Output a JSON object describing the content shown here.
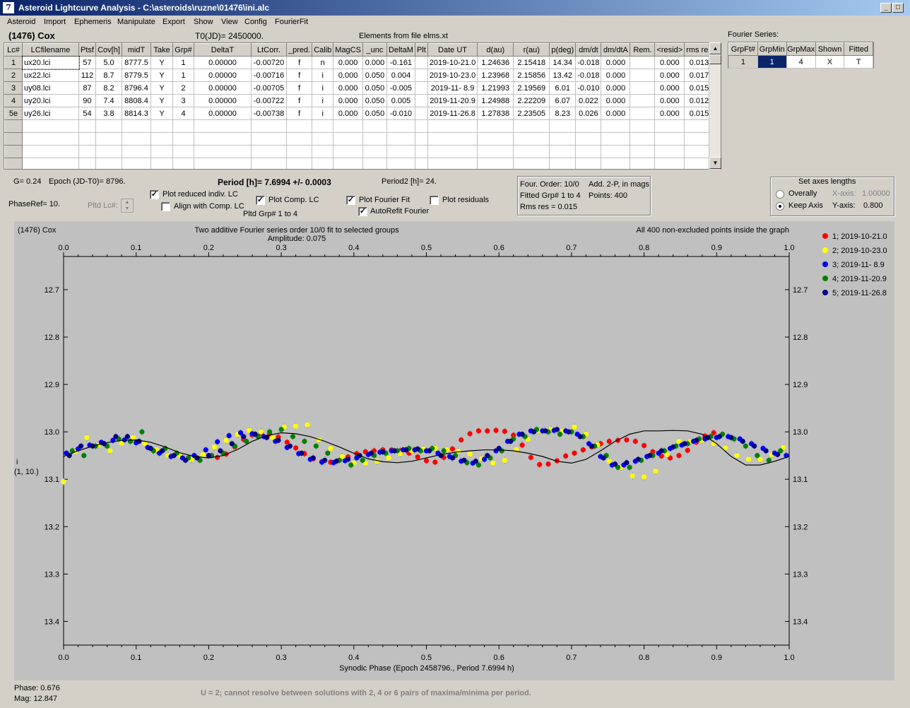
{
  "window": {
    "title": "Asteroid Lightcurve Analysis - C:\\asteroids\\ruzne\\01476\\ini.alc"
  },
  "menu": [
    "Asteroid",
    "Import",
    "Ephemeris",
    "Manipulate",
    "Export",
    "Show",
    "View",
    "Config",
    "FourierFit"
  ],
  "header": {
    "asteroid": "(1476) Cox",
    "t0": "T0(JD)= 2450000.",
    "elements": "Elements from file elms.xt",
    "fourier_series_label": "Fourier Series:"
  },
  "lc_table": {
    "columns": [
      "Lc#",
      "LCfilename",
      "Ptsf",
      "Cov[h]",
      "midT",
      "Take",
      "Grp#",
      "DeltaT",
      "LtCorr.",
      "_pred.",
      "Calib",
      "MagCS",
      "_unc",
      "DeltaM",
      "Plt",
      "Date UT",
      "d(au)",
      "r(au)",
      "p(deg)",
      "dm/dt",
      "dm/dtA",
      "Rem.",
      "<resid>",
      "rms res"
    ],
    "rows": [
      [
        "1",
        "ux20.lci",
        "57",
        "5.0",
        "8777.5",
        "Y",
        "1",
        "0.00000",
        "-0.00720",
        "f",
        "n",
        "0.000",
        "0.000",
        "-0.161",
        "",
        "2019-10-21.0",
        "1.24636",
        "2.15418",
        "14.34",
        "-0.018",
        "0.000",
        "",
        "0.000",
        "0.013"
      ],
      [
        "2",
        "ux22.lci",
        "112",
        "8.7",
        "8779.5",
        "Y",
        "1",
        "0.00000",
        "-0.00716",
        "f",
        "i",
        "0.000",
        "0.050",
        "0.004",
        "",
        "2019-10-23.0",
        "1.23968",
        "2.15856",
        "13.42",
        "-0.018",
        "0.000",
        "",
        "0.000",
        "0.017"
      ],
      [
        "3",
        "uy08.lci",
        "87",
        "8.2",
        "8796.4",
        "Y",
        "2",
        "0.00000",
        "-0.00705",
        "f",
        "i",
        "0.000",
        "0.050",
        "-0.005",
        "",
        "2019-11- 8.9",
        "1.21993",
        "2.19569",
        "6.01",
        "-0.010",
        "0.000",
        "",
        "0.000",
        "0.015"
      ],
      [
        "4",
        "uy20.lci",
        "90",
        "7.4",
        "8808.4",
        "Y",
        "3",
        "0.00000",
        "-0.00722",
        "f",
        "i",
        "0.000",
        "0.050",
        "0.005",
        "",
        "2019-11-20.9",
        "1.24988",
        "2.22209",
        "6.07",
        "0.022",
        "0.000",
        "",
        "0.000",
        "0.012"
      ],
      [
        "5e",
        "uy26.lci",
        "54",
        "3.8",
        "8814.3",
        "Y",
        "4",
        "0.00000",
        "-0.00738",
        "f",
        "i",
        "0.000",
        "0.050",
        "-0.010",
        "",
        "2019-11-26.8",
        "1.27838",
        "2.23505",
        "8.23",
        "0.026",
        "0.000",
        "",
        "0.000",
        "0.015"
      ]
    ],
    "empty_rows": 4
  },
  "fourier_table": {
    "columns": [
      "GrpFt#",
      "GrpMin",
      "GrpMax",
      "Shown",
      "Fitted"
    ],
    "row": [
      "1",
      "1",
      "4",
      "X",
      "T"
    ]
  },
  "params": {
    "g": "G= 0.24",
    "epoch": "Epoch (JD-T0)= 8796.",
    "period": "Period [h]= 7.6994 +/- 0.0003",
    "period2": "Period2 [h]= 24.",
    "phaseref": "PhaseRef= 10.",
    "pltd_lc": "Pltd Lc#:",
    "pltd_grp": "Pltd Grp#  1   to   4"
  },
  "checkboxes": {
    "plot_reduced": {
      "label": "Plot reduced indiv. LC",
      "checked": true
    },
    "align": {
      "label": "Align with Comp. LC",
      "checked": false
    },
    "plot_comp": {
      "label": "Plot Comp. LC",
      "checked": true
    },
    "plot_fourier": {
      "label": "Plot Fourier Fit",
      "checked": true
    },
    "autorefit": {
      "label": "AutoRefit Fourier",
      "checked": true
    },
    "plot_residuals": {
      "label": "Plot residuals",
      "checked": false
    }
  },
  "fourier_info": {
    "order": "Four. Order: 10/0",
    "add": "Add. 2-P, in mags",
    "fitted": "Fitted Grp# 1 to 4",
    "points": "Points: 400",
    "rms": "Rms res     = 0.015"
  },
  "axes_box": {
    "title": "Set axes lengths",
    "overally": "Overally",
    "keep": "Keep Axis",
    "xaxis_label": "X-axis:",
    "xaxis_value": "1.00000",
    "yaxis_label": "Y-axis:",
    "yaxis_value": "0.800"
  },
  "chart_data": {
    "type": "scatter",
    "name": "(1476) Cox",
    "title": "Two additive Fourier series order 10/0 fit to selected groups",
    "subtitle": "Amplitude: 0.075",
    "note": "All 400 non-excluded points inside the graph",
    "xlabel": "Synodic Phase (Epoch 2458796., Period 7.6994 h)",
    "ylabel": "i",
    "ylabel2": "(1, 10.)",
    "xlim": [
      0.0,
      1.0
    ],
    "ylim": [
      13.45,
      12.63
    ],
    "x_ticks": [
      "0.0",
      "0.1",
      "0.2",
      "0.3",
      "0.4",
      "0.5",
      "0.6",
      "0.7",
      "0.8",
      "0.9",
      "1.0"
    ],
    "y_ticks": [
      "12.7",
      "12.8",
      "12.9",
      "13.0",
      "13.1",
      "13.2",
      "13.3",
      "13.4"
    ],
    "grid": false,
    "legend_position": "top-right",
    "fit_curve": {
      "x": [
        0.0,
        0.02,
        0.04,
        0.06,
        0.08,
        0.1,
        0.12,
        0.14,
        0.16,
        0.18,
        0.2,
        0.22,
        0.24,
        0.26,
        0.28,
        0.3,
        0.32,
        0.34,
        0.36,
        0.38,
        0.4,
        0.42,
        0.44,
        0.46,
        0.48,
        0.5,
        0.52,
        0.54,
        0.56,
        0.58,
        0.6,
        0.62,
        0.64,
        0.66,
        0.68,
        0.7,
        0.72,
        0.74,
        0.76,
        0.78,
        0.8,
        0.82,
        0.84,
        0.86,
        0.88,
        0.9,
        0.92,
        0.94,
        0.96,
        0.98,
        1.0
      ],
      "y": [
        13.052,
        13.04,
        13.03,
        13.023,
        13.018,
        13.017,
        13.022,
        13.032,
        13.044,
        13.052,
        13.055,
        13.05,
        13.037,
        13.02,
        13.008,
        13.002,
        13.004,
        13.01,
        13.02,
        13.032,
        13.045,
        13.057,
        13.063,
        13.065,
        13.062,
        13.055,
        13.048,
        13.043,
        13.04,
        13.038,
        13.038,
        13.04,
        13.045,
        13.052,
        13.062,
        13.066,
        13.058,
        13.04,
        13.02,
        13.005,
        12.998,
        12.998,
        12.997,
        12.998,
        13.005,
        13.025,
        13.052,
        13.07,
        13.07,
        13.062,
        13.052
      ]
    },
    "series": [
      {
        "name": "1; 2019-10-21.0",
        "color": "#ff0000",
        "x": [
          0.212,
          0.224,
          0.236,
          0.248,
          0.26,
          0.272,
          0.284,
          0.296,
          0.308,
          0.32,
          0.332,
          0.344,
          0.356,
          0.368,
          0.38,
          0.392,
          0.404,
          0.416,
          0.428,
          0.44,
          0.452,
          0.464,
          0.476,
          0.488,
          0.5,
          0.512,
          0.524,
          0.536,
          0.548,
          0.56,
          0.572,
          0.584,
          0.596,
          0.608,
          0.62,
          0.632,
          0.644,
          0.656,
          0.668,
          0.68,
          0.692,
          0.704,
          0.716,
          0.728,
          0.74,
          0.752,
          0.764,
          0.776,
          0.788,
          0.8,
          0.812,
          0.824,
          0.836,
          0.848,
          0.86,
          0.872,
          0.884,
          0.896
        ],
        "y": [
          13.054,
          13.047,
          13.032,
          13.016,
          13.007,
          13.003,
          13.005,
          13.011,
          13.022,
          13.034,
          13.046,
          13.057,
          13.063,
          13.064,
          13.06,
          13.053,
          13.046,
          13.042,
          13.04,
          13.038,
          13.038,
          13.04,
          13.045,
          13.053,
          13.061,
          13.064,
          13.054,
          13.036,
          13.017,
          13.004,
          12.998,
          12.998,
          12.997,
          12.999,
          13.007,
          13.028,
          13.054,
          13.069,
          13.068,
          13.061,
          13.051,
          13.045,
          13.038,
          13.032,
          13.025,
          13.02,
          13.018,
          13.017,
          13.02,
          13.029,
          13.042,
          13.051,
          13.055,
          13.05,
          13.039,
          13.022,
          13.009,
          13.002
        ]
      },
      {
        "name": "2; 2019-10-23.0",
        "color": "#ffff00",
        "x": [
          0.0,
          0.016,
          0.032,
          0.048,
          0.064,
          0.08,
          0.096,
          0.112,
          0.128,
          0.144,
          0.16,
          0.176,
          0.192,
          0.208,
          0.224,
          0.24,
          0.256,
          0.272,
          0.288,
          0.304,
          0.32,
          0.336,
          0.352,
          0.368,
          0.384,
          0.4,
          0.416,
          0.432,
          0.448,
          0.464,
          0.48,
          0.496,
          0.512,
          0.528,
          0.544,
          0.56,
          0.576,
          0.592,
          0.608,
          0.624,
          0.64,
          0.656,
          0.672,
          0.688,
          0.704,
          0.72,
          0.736,
          0.752,
          0.768,
          0.784,
          0.8,
          0.816,
          0.832,
          0.848,
          0.864,
          0.88,
          0.896,
          0.912,
          0.928,
          0.944,
          0.96,
          0.976,
          0.992
        ],
        "y": [
          13.105,
          13.042,
          13.012,
          13.028,
          13.04,
          13.024,
          13.012,
          13.025,
          13.038,
          13.05,
          13.05,
          13.058,
          13.048,
          13.032,
          13.018,
          13.005,
          12.997,
          13.0,
          13.012,
          12.99,
          12.988,
          12.985,
          13.017,
          13.035,
          13.052,
          13.066,
          13.066,
          13.062,
          13.055,
          13.046,
          13.04,
          13.036,
          13.035,
          13.038,
          13.041,
          13.047,
          13.057,
          13.066,
          13.06,
          13.037,
          13.016,
          12.998,
          12.995,
          12.998,
          12.99,
          13.005,
          13.027,
          13.062,
          13.075,
          13.093,
          13.095,
          13.083,
          13.048,
          13.02,
          13.02,
          13.018,
          13.025,
          13.034,
          13.05,
          13.058,
          13.058,
          13.048,
          13.033
        ]
      },
      {
        "name": "3; 2019-11- 8.9",
        "color": "#0000ff",
        "x": [
          0.004,
          0.02,
          0.036,
          0.052,
          0.068,
          0.084,
          0.1,
          0.116,
          0.132,
          0.148,
          0.164,
          0.18,
          0.196,
          0.212,
          0.228,
          0.244,
          0.26,
          0.276,
          0.292,
          0.308,
          0.324,
          0.34,
          0.356,
          0.372,
          0.388,
          0.404,
          0.42,
          0.436,
          0.452,
          0.468,
          0.484,
          0.5,
          0.516,
          0.532,
          0.548,
          0.564,
          0.58,
          0.596,
          0.612,
          0.628,
          0.644,
          0.66,
          0.676,
          0.692,
          0.708,
          0.724,
          0.74,
          0.756,
          0.772,
          0.788,
          0.804,
          0.82,
          0.836,
          0.852,
          0.868,
          0.884,
          0.9,
          0.916,
          0.932,
          0.948,
          0.964,
          0.98,
          0.996
        ],
        "y": [
          13.045,
          13.036,
          13.028,
          13.022,
          13.018,
          13.017,
          13.023,
          13.033,
          13.045,
          13.052,
          13.055,
          13.05,
          13.038,
          13.021,
          13.008,
          13.002,
          13.004,
          13.01,
          13.02,
          13.033,
          13.046,
          13.058,
          13.064,
          13.065,
          13.061,
          13.055,
          13.048,
          13.043,
          13.04,
          13.038,
          13.038,
          13.04,
          13.045,
          13.052,
          13.062,
          13.066,
          13.058,
          13.04,
          13.02,
          13.005,
          12.998,
          12.998,
          12.997,
          12.998,
          13.005,
          13.025,
          13.052,
          13.07,
          13.07,
          13.062,
          13.052,
          13.045,
          13.035,
          13.028,
          13.02,
          13.015,
          13.012,
          13.01,
          13.015,
          13.025,
          13.035,
          13.045,
          13.05
        ]
      },
      {
        "name": "4; 2019-11-20.9",
        "color": "#008000",
        "x": [
          0.012,
          0.028,
          0.044,
          0.06,
          0.076,
          0.092,
          0.108,
          0.124,
          0.14,
          0.156,
          0.172,
          0.188,
          0.204,
          0.22,
          0.236,
          0.252,
          0.268,
          0.284,
          0.3,
          0.316,
          0.332,
          0.348,
          0.364,
          0.38,
          0.396,
          0.412,
          0.428,
          0.444,
          0.46,
          0.476,
          0.492,
          0.508,
          0.524,
          0.54,
          0.556,
          0.572,
          0.588,
          0.604,
          0.62,
          0.636,
          0.652,
          0.668,
          0.684,
          0.7,
          0.716,
          0.732,
          0.748,
          0.764,
          0.78,
          0.796,
          0.812,
          0.828,
          0.844,
          0.86,
          0.876,
          0.892,
          0.908,
          0.924,
          0.94,
          0.956,
          0.972,
          0.988
        ],
        "y": [
          13.04,
          13.05,
          13.03,
          13.03,
          13.015,
          13.02,
          13.0,
          13.04,
          13.035,
          13.045,
          13.055,
          13.06,
          13.05,
          13.045,
          13.03,
          13.02,
          13.01,
          13.0,
          12.995,
          13.01,
          13.02,
          13.03,
          13.045,
          13.06,
          13.07,
          13.06,
          13.05,
          13.045,
          13.04,
          13.035,
          13.04,
          13.035,
          13.04,
          13.05,
          13.065,
          13.07,
          13.055,
          13.04,
          13.015,
          13.01,
          12.995,
          13.0,
          13.005,
          13.0,
          13.01,
          13.03,
          13.05,
          13.075,
          13.075,
          13.06,
          13.05,
          13.04,
          13.03,
          13.025,
          13.015,
          13.01,
          13.005,
          13.015,
          13.03,
          13.05,
          13.06,
          13.04
        ]
      },
      {
        "name": "5; 2019-11-26.8",
        "color": "#000080",
        "x": [
          0.008,
          0.024,
          0.04,
          0.056,
          0.072,
          0.088,
          0.104,
          0.12,
          0.136,
          0.152,
          0.168,
          0.184,
          0.2,
          0.216,
          0.232,
          0.248,
          0.264,
          0.28,
          0.296,
          0.312,
          0.328,
          0.344,
          0.36,
          0.376,
          0.392,
          0.408,
          0.424,
          0.44,
          0.456,
          0.472,
          0.488,
          0.504,
          0.52,
          0.536,
          0.552,
          0.568,
          0.584,
          0.6,
          0.616,
          0.632,
          0.648,
          0.664,
          0.68,
          0.696,
          0.712,
          0.728,
          0.744,
          0.76,
          0.776,
          0.792,
          0.808,
          0.824,
          0.84,
          0.856,
          0.872,
          0.888,
          0.904,
          0.92,
          0.936,
          0.952,
          0.968,
          0.984
        ],
        "y": [
          13.05,
          13.03,
          13.03,
          13.025,
          13.01,
          13.01,
          13.02,
          13.035,
          13.04,
          13.05,
          13.06,
          13.055,
          13.05,
          13.04,
          13.025,
          13.01,
          13.005,
          13.012,
          13.018,
          13.03,
          13.045,
          13.055,
          13.06,
          13.062,
          13.058,
          13.05,
          13.045,
          13.042,
          13.04,
          13.038,
          13.036,
          13.04,
          13.05,
          13.055,
          13.06,
          13.062,
          13.05,
          13.035,
          13.02,
          13.005,
          13.0,
          12.998,
          12.995,
          13.0,
          13.01,
          13.03,
          13.055,
          13.068,
          13.065,
          13.058,
          13.05,
          13.04,
          13.032,
          13.025,
          13.018,
          13.012,
          13.01,
          13.012,
          13.02,
          13.03,
          13.04,
          13.048
        ]
      }
    ]
  },
  "status": {
    "phase": "Phase:  0.676",
    "mag": "Mag:    12.847",
    "message": "U = 2; cannot resolve between solutions with 2, 4 or 6 pairs of maxima/minima per period."
  }
}
